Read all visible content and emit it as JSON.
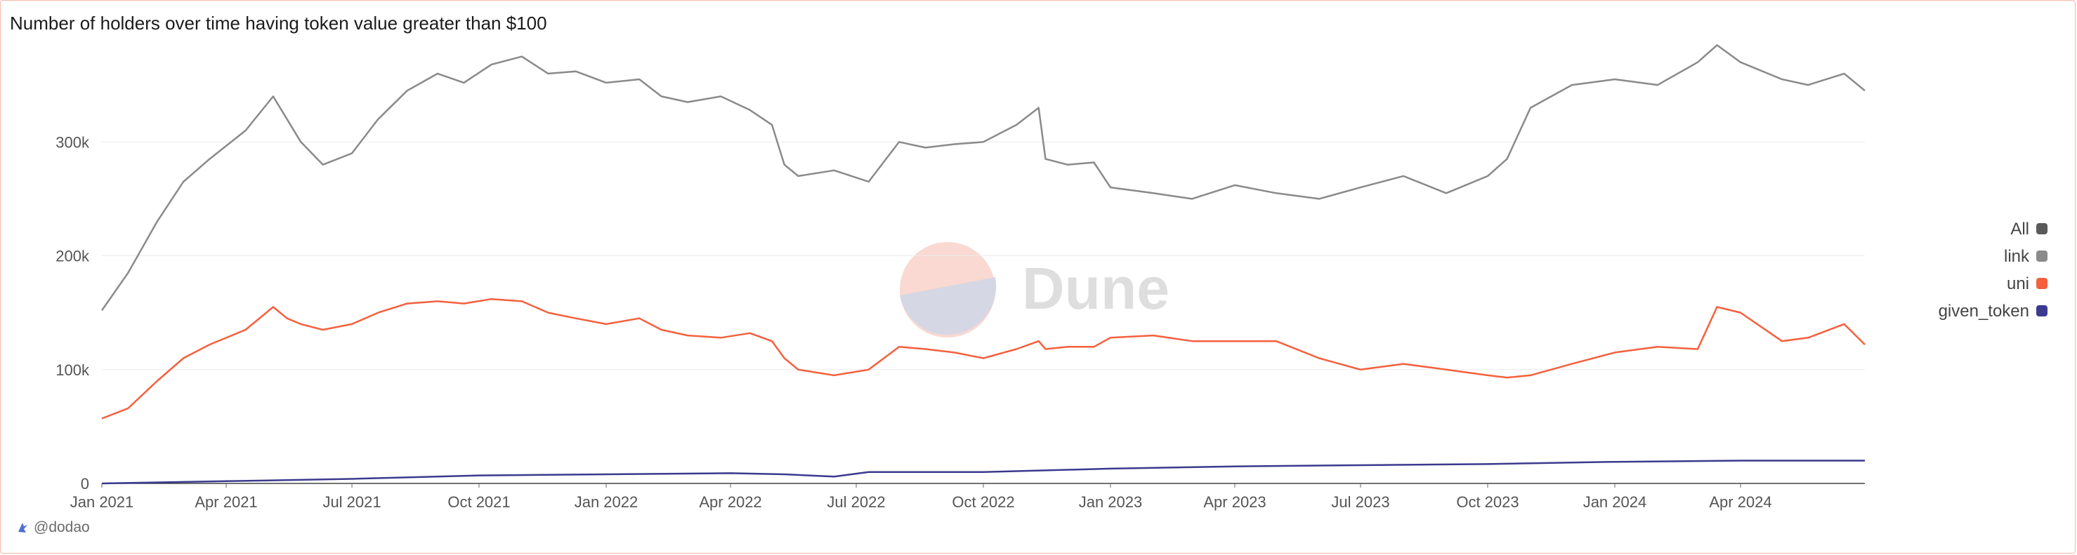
{
  "chart_data": {
    "type": "line",
    "title": "Number of holders over time having token value greater than $100",
    "x_ticks": [
      "Jan 2021",
      "Apr 2021",
      "Jul 2021",
      "Oct 2021",
      "Jan 2022",
      "Apr 2022",
      "Jul 2022",
      "Oct 2022",
      "Jan 2023",
      "Apr 2023",
      "Jul 2023",
      "Oct 2023",
      "Jan 2024",
      "Apr 2024"
    ],
    "x_range": [
      "2021-01-01",
      "2024-06-30"
    ],
    "y_ticks": [
      "0",
      "100k",
      "200k",
      "300k"
    ],
    "ylim": [
      0,
      400000
    ],
    "grid": true,
    "legend_position": "right",
    "watermark": "Dune",
    "series": [
      {
        "name": "All",
        "color": "#5a5a5a",
        "x": [],
        "y": []
      },
      {
        "name": "link",
        "color": "#8a8a8a",
        "x": [
          "2021-01-01",
          "2021-01-20",
          "2021-02-10",
          "2021-03-01",
          "2021-03-20",
          "2021-04-15",
          "2021-05-05",
          "2021-05-15",
          "2021-05-25",
          "2021-06-10",
          "2021-07-01",
          "2021-07-20",
          "2021-08-10",
          "2021-09-01",
          "2021-09-20",
          "2021-10-10",
          "2021-11-01",
          "2021-11-20",
          "2021-12-10",
          "2022-01-01",
          "2022-01-25",
          "2022-02-10",
          "2022-03-01",
          "2022-03-25",
          "2022-04-15",
          "2022-05-01",
          "2022-05-10",
          "2022-05-20",
          "2022-06-15",
          "2022-07-10",
          "2022-08-01",
          "2022-08-20",
          "2022-09-10",
          "2022-10-01",
          "2022-10-25",
          "2022-11-10",
          "2022-11-15",
          "2022-12-01",
          "2022-12-20",
          "2023-01-01",
          "2023-02-01",
          "2023-03-01",
          "2023-04-01",
          "2023-05-01",
          "2023-06-01",
          "2023-07-01",
          "2023-08-01",
          "2023-09-01",
          "2023-10-01",
          "2023-10-15",
          "2023-11-01",
          "2023-12-01",
          "2024-01-01",
          "2024-02-01",
          "2024-03-01",
          "2024-03-15",
          "2024-04-01",
          "2024-05-01",
          "2024-05-20",
          "2024-06-15",
          "2024-06-30"
        ],
        "y": [
          152000,
          185000,
          230000,
          265000,
          285000,
          310000,
          340000,
          320000,
          300000,
          280000,
          290000,
          320000,
          345000,
          360000,
          352000,
          368000,
          375000,
          360000,
          362000,
          352000,
          355000,
          340000,
          335000,
          340000,
          328000,
          315000,
          280000,
          270000,
          275000,
          265000,
          300000,
          295000,
          298000,
          300000,
          315000,
          330000,
          285000,
          280000,
          282000,
          260000,
          255000,
          250000,
          262000,
          255000,
          250000,
          260000,
          270000,
          255000,
          270000,
          285000,
          330000,
          350000,
          355000,
          350000,
          370000,
          385000,
          370000,
          355000,
          350000,
          360000,
          345000
        ]
      },
      {
        "name": "uni",
        "color": "#f4603e",
        "x": [
          "2021-01-01",
          "2021-01-20",
          "2021-02-10",
          "2021-03-01",
          "2021-03-20",
          "2021-04-15",
          "2021-05-05",
          "2021-05-15",
          "2021-05-25",
          "2021-06-10",
          "2021-07-01",
          "2021-07-20",
          "2021-08-10",
          "2021-09-01",
          "2021-09-20",
          "2021-10-10",
          "2021-11-01",
          "2021-11-20",
          "2021-12-10",
          "2022-01-01",
          "2022-01-25",
          "2022-02-10",
          "2022-03-01",
          "2022-03-25",
          "2022-04-15",
          "2022-05-01",
          "2022-05-10",
          "2022-05-20",
          "2022-06-15",
          "2022-07-10",
          "2022-08-01",
          "2022-08-20",
          "2022-09-10",
          "2022-10-01",
          "2022-10-25",
          "2022-11-10",
          "2022-11-15",
          "2022-12-01",
          "2022-12-20",
          "2023-01-01",
          "2023-02-01",
          "2023-03-01",
          "2023-04-01",
          "2023-05-01",
          "2023-06-01",
          "2023-07-01",
          "2023-08-01",
          "2023-09-01",
          "2023-10-01",
          "2023-10-15",
          "2023-11-01",
          "2023-12-01",
          "2024-01-01",
          "2024-02-01",
          "2024-03-01",
          "2024-03-15",
          "2024-04-01",
          "2024-05-01",
          "2024-05-20",
          "2024-06-15",
          "2024-06-30"
        ],
        "y": [
          57000,
          66000,
          90000,
          110000,
          122000,
          135000,
          155000,
          145000,
          140000,
          135000,
          140000,
          150000,
          158000,
          160000,
          158000,
          162000,
          160000,
          150000,
          145000,
          140000,
          145000,
          135000,
          130000,
          128000,
          132000,
          125000,
          110000,
          100000,
          95000,
          100000,
          120000,
          118000,
          115000,
          110000,
          118000,
          125000,
          118000,
          120000,
          120000,
          128000,
          130000,
          125000,
          125000,
          125000,
          110000,
          100000,
          105000,
          100000,
          95000,
          93000,
          95000,
          105000,
          115000,
          120000,
          118000,
          155000,
          150000,
          125000,
          128000,
          140000,
          122000
        ]
      },
      {
        "name": "given_token",
        "color": "#3b3a8e",
        "x": [
          "2021-01-01",
          "2021-04-01",
          "2021-07-01",
          "2021-10-01",
          "2022-01-01",
          "2022-04-01",
          "2022-05-10",
          "2022-06-15",
          "2022-07-10",
          "2022-10-01",
          "2023-01-01",
          "2023-04-01",
          "2023-07-01",
          "2023-10-01",
          "2024-01-01",
          "2024-04-01",
          "2024-06-30"
        ],
        "y": [
          0,
          2000,
          4000,
          7000,
          8000,
          9000,
          8000,
          6000,
          10000,
          10000,
          13000,
          15000,
          16000,
          17000,
          19000,
          20000,
          20000
        ]
      }
    ]
  },
  "footer": {
    "author": "@dodao"
  }
}
